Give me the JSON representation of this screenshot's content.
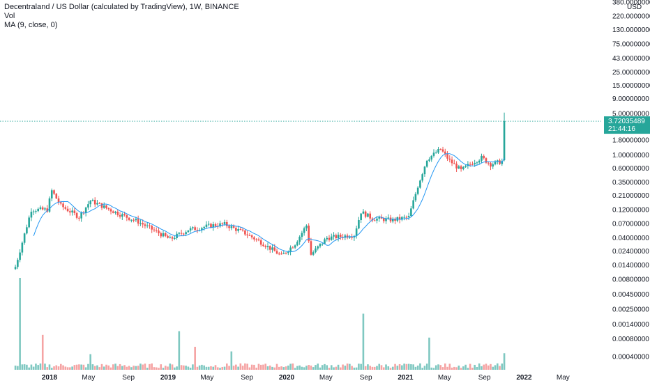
{
  "legend": {
    "title": "Decentraland / US Dollar (calculated by TradingView), 1W, BINANCE",
    "volume": "Vol",
    "ma": "MA (9, close, 0)"
  },
  "colors": {
    "up": "#26a69a",
    "down": "#ef5350",
    "up_volume": "#7fc8c1",
    "down_volume": "#f5a3a3",
    "ma": "#2196f3",
    "last_price": "#26a69a"
  },
  "price_badge": {
    "price": "3.72035489",
    "countdown": "21:44:16"
  },
  "chart_data": {
    "type": "candlestick",
    "symbol": "Decentraland / US Dollar",
    "interval": "1W",
    "exchange": "BINANCE",
    "currency": "USD",
    "y_scale": "log",
    "y_ticks": [
      "380.00000000",
      "220.00000000",
      "130.00000000",
      "75.00000000",
      "43.00000000",
      "25.00000000",
      "15.00000000",
      "9.00000000",
      "5.00000000",
      "1.80000000",
      "1.00000000",
      "0.60000000",
      "0.35000000",
      "0.21000000",
      "0.12000000",
      "0.07000000",
      "0.04000000",
      "0.02400000",
      "0.01400000",
      "0.00800000",
      "0.00450000",
      "0.00250000",
      "0.00140000",
      "0.00080000",
      "0.00040000"
    ],
    "x_ticks": [
      {
        "label": "2018",
        "date": "2018-01-01",
        "bold": true
      },
      {
        "label": "May",
        "date": "2018-05-01",
        "bold": false
      },
      {
        "label": "Sep",
        "date": "2018-09-01",
        "bold": false
      },
      {
        "label": "2019",
        "date": "2019-01-01",
        "bold": true
      },
      {
        "label": "May",
        "date": "2019-05-01",
        "bold": false
      },
      {
        "label": "Sep",
        "date": "2019-09-01",
        "bold": false
      },
      {
        "label": "2020",
        "date": "2020-01-01",
        "bold": true
      },
      {
        "label": "May",
        "date": "2020-05-01",
        "bold": false
      },
      {
        "label": "Sep",
        "date": "2020-09-01",
        "bold": false
      },
      {
        "label": "2021",
        "date": "2021-01-01",
        "bold": true
      },
      {
        "label": "May",
        "date": "2021-05-01",
        "bold": false
      },
      {
        "label": "Sep",
        "date": "2021-09-01",
        "bold": false
      },
      {
        "label": "2022",
        "date": "2022-01-01",
        "bold": true
      },
      {
        "label": "May",
        "date": "2022-05-01",
        "bold": false
      }
    ],
    "last_price": 3.72035489,
    "key_points": [
      {
        "date": "2017-09-18",
        "close": 0.013
      },
      {
        "date": "2017-11-06",
        "close": 0.12
      },
      {
        "date": "2017-12-25",
        "close": 0.12
      },
      {
        "date": "2018-01-08",
        "close": 0.25
      },
      {
        "date": "2018-02-05",
        "close": 0.14
      },
      {
        "date": "2018-04-02",
        "close": 0.09
      },
      {
        "date": "2018-05-07",
        "close": 0.17
      },
      {
        "date": "2018-08-06",
        "close": 0.1
      },
      {
        "date": "2018-10-01",
        "close": 0.075
      },
      {
        "date": "2019-01-07",
        "close": 0.038
      },
      {
        "date": "2019-03-04",
        "close": 0.055
      },
      {
        "date": "2019-04-01",
        "close": 0.058
      },
      {
        "date": "2019-05-13",
        "close": 0.065
      },
      {
        "date": "2019-06-24",
        "close": 0.068
      },
      {
        "date": "2019-08-26",
        "close": 0.048
      },
      {
        "date": "2019-10-21",
        "close": 0.032
      },
      {
        "date": "2019-12-16",
        "close": 0.02
      },
      {
        "date": "2020-01-27",
        "close": 0.032
      },
      {
        "date": "2020-03-02",
        "close": 0.065
      },
      {
        "date": "2020-03-16",
        "close": 0.021
      },
      {
        "date": "2020-05-04",
        "close": 0.04
      },
      {
        "date": "2020-07-27",
        "close": 0.045
      },
      {
        "date": "2020-08-17",
        "close": 0.11
      },
      {
        "date": "2020-09-21",
        "close": 0.085
      },
      {
        "date": "2020-11-23",
        "close": 0.08
      },
      {
        "date": "2021-01-11",
        "close": 0.09
      },
      {
        "date": "2021-02-08",
        "close": 0.3
      },
      {
        "date": "2021-03-08",
        "close": 0.85
      },
      {
        "date": "2021-04-05",
        "close": 1.1
      },
      {
        "date": "2021-04-19",
        "close": 1.25
      },
      {
        "date": "2021-05-17",
        "close": 0.8
      },
      {
        "date": "2021-06-21",
        "close": 0.55
      },
      {
        "date": "2021-07-26",
        "close": 0.75
      },
      {
        "date": "2021-08-23",
        "close": 0.9
      },
      {
        "date": "2021-09-20",
        "close": 0.7
      },
      {
        "date": "2021-10-25",
        "close": 0.78
      },
      {
        "date": "2021-11-01",
        "close": 3.72
      }
    ],
    "volume_peaks": [
      {
        "date": "2017-10-02",
        "volume_scale": 1.0
      },
      {
        "date": "2017-12-11",
        "volume_scale": 0.38
      },
      {
        "date": "2018-05-07",
        "volume_scale": 0.17
      },
      {
        "date": "2019-02-04",
        "volume_scale": 0.42
      },
      {
        "date": "2019-03-25",
        "volume_scale": 0.25
      },
      {
        "date": "2019-07-15",
        "volume_scale": 0.2
      },
      {
        "date": "2020-08-24",
        "volume_scale": 0.61
      },
      {
        "date": "2021-03-15",
        "volume_scale": 0.35
      },
      {
        "date": "2021-11-01",
        "volume_scale": 0.18
      }
    ]
  }
}
